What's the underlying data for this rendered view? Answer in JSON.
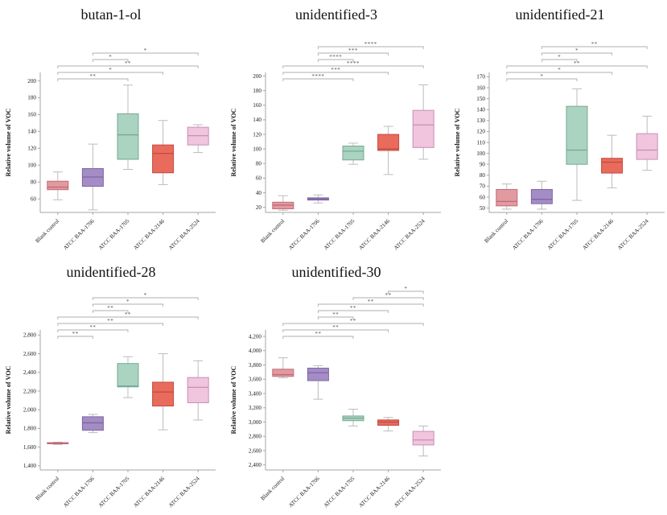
{
  "figure": {
    "ylabel": "Relative volume of VOC",
    "categories": [
      "Blank control",
      "ATCC BAA-1706",
      "ATCC BAA-1705",
      "ATCC BAA-2146",
      "ATCC BAA-2524"
    ],
    "colors": [
      {
        "fill": "#E29AA1",
        "stroke": "#C06A75"
      },
      {
        "fill": "#A48CC5",
        "stroke": "#7D66A4"
      },
      {
        "fill": "#ABD3C2",
        "stroke": "#74A893"
      },
      {
        "fill": "#E96B5C",
        "stroke": "#C04B40"
      },
      {
        "fill": "#F1C5DD",
        "stroke": "#C98FB6"
      }
    ],
    "whisker_color": "#BCBCBC",
    "axis_color": "#A6A6A6",
    "bracket_color": "#AFAFAF",
    "bracket_text_color": "#555555",
    "text_color": "#1a1a1a"
  },
  "chart_data": [
    {
      "type": "box",
      "title": "butan-1-ol",
      "ylabel": "Relative volume of VOC",
      "categories": [
        "Blank control",
        "ATCC BAA-1706",
        "ATCC BAA-1705",
        "ATCC BAA-2146",
        "ATCC BAA-2524"
      ],
      "ylim": [
        44,
        210
      ],
      "yticks": [
        60,
        80,
        100,
        120,
        140,
        160,
        180,
        200
      ],
      "ytick_labels": [
        "60",
        "80",
        "100",
        "120",
        "140",
        "160",
        "180",
        "200"
      ],
      "boxes": [
        {
          "low": 59,
          "q1": 71,
          "median": 74,
          "q3": 81,
          "high": 92
        },
        {
          "low": 47,
          "q1": 75,
          "median": 86,
          "q3": 96,
          "high": 125
        },
        {
          "low": 95,
          "q1": 107,
          "median": 136,
          "q3": 161,
          "high": 195
        },
        {
          "low": 77,
          "q1": 91,
          "median": 114,
          "q3": 124,
          "high": 153
        },
        {
          "low": 115,
          "q1": 124,
          "median": 135,
          "q3": 145,
          "high": 148
        }
      ],
      "significance": [
        {
          "from": 0,
          "to": 2,
          "label": "**"
        },
        {
          "from": 0,
          "to": 3,
          "label": "*"
        },
        {
          "from": 0,
          "to": 4,
          "label": "**"
        },
        {
          "from": 1,
          "to": 2,
          "label": "*"
        },
        {
          "from": 1,
          "to": 4,
          "label": "*"
        }
      ]
    },
    {
      "type": "box",
      "title": "unidentified-3",
      "ylabel": "Relative volume of VOC",
      "categories": [
        "Blank control",
        "ATCC BAA-1706",
        "ATCC BAA-1705",
        "ATCC BAA-2146",
        "ATCC BAA-2524"
      ],
      "ylim": [
        13,
        205
      ],
      "yticks": [
        20,
        40,
        60,
        80,
        100,
        120,
        140,
        160,
        180,
        200
      ],
      "ytick_labels": [
        "20",
        "40",
        "60",
        "80",
        "100",
        "120",
        "140",
        "160",
        "180",
        "200"
      ],
      "boxes": [
        {
          "low": 16,
          "q1": 18,
          "median": 23,
          "q3": 27,
          "high": 36
        },
        {
          "low": 26,
          "q1": 30,
          "median": 31.5,
          "q3": 33,
          "high": 37
        },
        {
          "low": 79,
          "q1": 85,
          "median": 97,
          "q3": 104,
          "high": 108
        },
        {
          "low": 65,
          "q1": 98,
          "median": 100,
          "q3": 120,
          "high": 131
        },
        {
          "low": 86,
          "q1": 102,
          "median": 133,
          "q3": 153,
          "high": 188
        }
      ],
      "significance": [
        {
          "from": 0,
          "to": 2,
          "label": "****"
        },
        {
          "from": 0,
          "to": 3,
          "label": "***"
        },
        {
          "from": 0,
          "to": 4,
          "label": "****"
        },
        {
          "from": 1,
          "to": 2,
          "label": "****"
        },
        {
          "from": 1,
          "to": 3,
          "label": "***"
        },
        {
          "from": 1,
          "to": 4,
          "label": "****"
        }
      ]
    },
    {
      "type": "box",
      "title": "unidentified-21",
      "ylabel": "Relative volume of VOC",
      "categories": [
        "Blank control",
        "ATCC BAA-1706",
        "ATCC BAA-1705",
        "ATCC BAA-2146",
        "ATCC BAA-2524"
      ],
      "ylim": [
        46,
        174
      ],
      "yticks": [
        50,
        60,
        70,
        80,
        90,
        100,
        110,
        120,
        130,
        140,
        150,
        160,
        170
      ],
      "ytick_labels": [
        "50",
        "60",
        "70",
        "80",
        "90",
        "100",
        "110",
        "120",
        "130",
        "140",
        "150",
        "160",
        "170"
      ],
      "boxes": [
        {
          "low": 49,
          "q1": 52,
          "median": 56,
          "q3": 67,
          "high": 72
        },
        {
          "low": 49,
          "q1": 54,
          "median": 58,
          "q3": 67,
          "high": 74.5
        },
        {
          "low": 57,
          "q1": 90,
          "median": 103,
          "q3": 143,
          "high": 159
        },
        {
          "low": 68.5,
          "q1": 82,
          "median": 92,
          "q3": 95.5,
          "high": 116.5
        },
        {
          "low": 84.5,
          "q1": 94.5,
          "median": 103,
          "q3": 118,
          "high": 134
        }
      ],
      "significance": [
        {
          "from": 0,
          "to": 2,
          "label": "*"
        },
        {
          "from": 0,
          "to": 3,
          "label": "*"
        },
        {
          "from": 0,
          "to": 4,
          "label": "**"
        },
        {
          "from": 1,
          "to": 2,
          "label": "*"
        },
        {
          "from": 1,
          "to": 3,
          "label": "*"
        },
        {
          "from": 1,
          "to": 4,
          "label": "**"
        }
      ]
    },
    {
      "type": "box",
      "title": "unidentified-28",
      "ylabel": "Relative volume of VOC",
      "categories": [
        "Blank control",
        "ATCC BAA-1706",
        "ATCC BAA-1705",
        "ATCC BAA-2146",
        "ATCC BAA-2524"
      ],
      "ylim": [
        1355,
        2855
      ],
      "yticks": [
        1400,
        1600,
        1800,
        2000,
        2200,
        2400,
        2600,
        2800
      ],
      "ytick_labels": [
        "1,400",
        "1,600",
        "1,800",
        "2,000",
        "2,200",
        "2,400",
        "2,600",
        "2,800"
      ],
      "boxes": [
        {
          "low": 1628,
          "q1": 1635,
          "median": 1641,
          "q3": 1647,
          "high": 1652
        },
        {
          "low": 1755,
          "q1": 1780,
          "median": 1860,
          "q3": 1925,
          "high": 1950
        },
        {
          "low": 2130,
          "q1": 2245,
          "median": 2255,
          "q3": 2495,
          "high": 2568
        },
        {
          "low": 1785,
          "q1": 2040,
          "median": 2190,
          "q3": 2295,
          "high": 2600
        },
        {
          "low": 1890,
          "q1": 2075,
          "median": 2240,
          "q3": 2345,
          "high": 2525
        }
      ],
      "significance": [
        {
          "from": 0,
          "to": 1,
          "label": "**"
        },
        {
          "from": 0,
          "to": 2,
          "label": "**"
        },
        {
          "from": 0,
          "to": 3,
          "label": "**"
        },
        {
          "from": 0,
          "to": 4,
          "label": "**"
        },
        {
          "from": 1,
          "to": 2,
          "label": "**"
        },
        {
          "from": 1,
          "to": 3,
          "label": "*"
        },
        {
          "from": 1,
          "to": 4,
          "label": "*"
        }
      ]
    },
    {
      "type": "box",
      "title": "unidentified-30",
      "ylabel": "Relative volume of VOC",
      "categories": [
        "Blank control",
        "ATCC BAA-1706",
        "ATCC BAA-1705",
        "ATCC BAA-2146",
        "ATCC BAA-2524"
      ],
      "ylim": [
        2330,
        4290
      ],
      "yticks": [
        2400,
        2600,
        2800,
        3000,
        3200,
        3400,
        3600,
        3800,
        4000,
        4200
      ],
      "ytick_labels": [
        "2,400",
        "2,600",
        "2,800",
        "3,000",
        "3,200",
        "3,400",
        "3,600",
        "3,800",
        "4,000",
        "4,200"
      ],
      "boxes": [
        {
          "low": 3620,
          "q1": 3640,
          "median": 3665,
          "q3": 3740,
          "high": 3900
        },
        {
          "low": 3320,
          "q1": 3580,
          "median": 3690,
          "q3": 3755,
          "high": 3790
        },
        {
          "low": 2945,
          "q1": 3020,
          "median": 3055,
          "q3": 3085,
          "high": 3180
        },
        {
          "low": 2875,
          "q1": 2955,
          "median": 3000,
          "q3": 3030,
          "high": 3065
        },
        {
          "low": 2525,
          "q1": 2680,
          "median": 2750,
          "q3": 2870,
          "high": 2945
        }
      ],
      "significance": [
        {
          "from": 0,
          "to": 2,
          "label": "**"
        },
        {
          "from": 0,
          "to": 3,
          "label": "**"
        },
        {
          "from": 0,
          "to": 4,
          "label": "**"
        },
        {
          "from": 1,
          "to": 2,
          "label": "**"
        },
        {
          "from": 1,
          "to": 3,
          "label": "**"
        },
        {
          "from": 1,
          "to": 4,
          "label": "**"
        },
        {
          "from": 2,
          "to": 4,
          "label": "**"
        },
        {
          "from": 3,
          "to": 4,
          "label": "*"
        }
      ]
    }
  ]
}
